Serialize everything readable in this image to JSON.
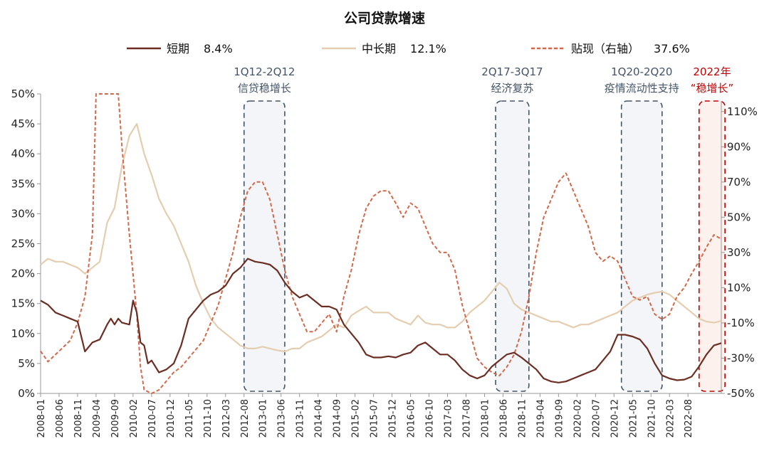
{
  "chart_data": {
    "type": "line",
    "title": "公司贷款增速",
    "legend_position": "top",
    "grid": false,
    "y_left": {
      "ylim": [
        0,
        50
      ],
      "ticks": [
        "0%",
        "5%",
        "10%",
        "15%",
        "20%",
        "25%",
        "30%",
        "35%",
        "40%",
        "45%",
        "50%"
      ]
    },
    "y_right": {
      "ylim": [
        -50,
        120
      ],
      "ticks": [
        "-50%",
        "-30%",
        "-10%",
        "10%",
        "30%",
        "50%",
        "70%",
        "90%",
        "110%"
      ]
    },
    "x_ticks": [
      "2008-01",
      "2008-06",
      "2008-11",
      "2009-04",
      "2009-09",
      "2010-02",
      "2010-07",
      "2010-12",
      "2011-05",
      "2011-10",
      "2012-03",
      "2012-08",
      "2013-01",
      "2013-06",
      "2013-11",
      "2014-04",
      "2014-09",
      "2015-02",
      "2015-07",
      "2015-12",
      "2016-05",
      "2016-10",
      "2017-03",
      "2017-08",
      "2018-01",
      "2018-06",
      "2018-11",
      "2019-04",
      "2019-09",
      "2020-02",
      "2020-07",
      "2020-12",
      "2021-05",
      "2021-10",
      "2022-03",
      "2022-08"
    ],
    "series": [
      {
        "name": "短期",
        "latest": "8.4%",
        "axis": "left",
        "color": "#6b2e22",
        "dash": "solid",
        "points": [
          [
            0,
            15.5
          ],
          [
            2,
            14.8
          ],
          [
            4,
            13.5
          ],
          [
            6,
            13.0
          ],
          [
            8,
            12.5
          ],
          [
            10,
            12.0
          ],
          [
            12,
            7.0
          ],
          [
            14,
            8.5
          ],
          [
            16,
            9.0
          ],
          [
            18,
            11.5
          ],
          [
            19,
            12.5
          ],
          [
            20,
            11.5
          ],
          [
            21,
            12.5
          ],
          [
            22,
            11.8
          ],
          [
            24,
            11.5
          ],
          [
            25,
            15.5
          ],
          [
            26,
            13.5
          ],
          [
            27,
            8.5
          ],
          [
            28,
            8.0
          ],
          [
            29,
            5.0
          ],
          [
            30,
            5.5
          ],
          [
            32,
            3.5
          ],
          [
            34,
            4.0
          ],
          [
            36,
            5.0
          ],
          [
            38,
            8.0
          ],
          [
            40,
            12.5
          ],
          [
            42,
            14.0
          ],
          [
            44,
            15.5
          ],
          [
            46,
            16.5
          ],
          [
            48,
            17.0
          ],
          [
            50,
            18.0
          ],
          [
            52,
            20.0
          ],
          [
            54,
            21.0
          ],
          [
            56,
            22.5
          ],
          [
            58,
            22.0
          ],
          [
            60,
            21.8
          ],
          [
            62,
            21.5
          ],
          [
            64,
            20.5
          ],
          [
            66,
            18.5
          ],
          [
            68,
            17.0
          ],
          [
            70,
            16.0
          ],
          [
            72,
            16.5
          ],
          [
            74,
            15.5
          ],
          [
            76,
            14.5
          ],
          [
            78,
            14.5
          ],
          [
            80,
            14.0
          ],
          [
            82,
            11.5
          ],
          [
            84,
            10.0
          ],
          [
            86,
            8.5
          ],
          [
            88,
            6.5
          ],
          [
            90,
            6.0
          ],
          [
            92,
            6.0
          ],
          [
            94,
            6.2
          ],
          [
            96,
            6.0
          ],
          [
            98,
            6.5
          ],
          [
            100,
            6.8
          ],
          [
            102,
            8.0
          ],
          [
            104,
            8.5
          ],
          [
            106,
            7.5
          ],
          [
            108,
            6.5
          ],
          [
            110,
            6.5
          ],
          [
            112,
            5.5
          ],
          [
            114,
            4.0
          ],
          [
            116,
            3.0
          ],
          [
            118,
            2.5
          ],
          [
            120,
            3.0
          ],
          [
            122,
            4.5
          ],
          [
            124,
            5.5
          ],
          [
            126,
            6.5
          ],
          [
            128,
            6.8
          ],
          [
            130,
            6.0
          ],
          [
            132,
            5.0
          ],
          [
            134,
            4.0
          ],
          [
            136,
            2.5
          ],
          [
            138,
            2.0
          ],
          [
            140,
            1.8
          ],
          [
            142,
            2.0
          ],
          [
            144,
            2.5
          ],
          [
            146,
            3.0
          ],
          [
            148,
            3.5
          ],
          [
            150,
            4.0
          ],
          [
            152,
            5.5
          ],
          [
            154,
            7.0
          ],
          [
            156,
            9.8
          ],
          [
            158,
            9.8
          ],
          [
            160,
            9.5
          ],
          [
            162,
            9.0
          ],
          [
            164,
            7.5
          ],
          [
            166,
            5.0
          ],
          [
            168,
            3.0
          ],
          [
            170,
            2.5
          ],
          [
            172,
            2.2
          ],
          [
            174,
            2.3
          ],
          [
            176,
            2.8
          ],
          [
            178,
            4.5
          ],
          [
            180,
            6.5
          ],
          [
            182,
            8.0
          ],
          [
            184,
            8.4
          ]
        ]
      },
      {
        "name": "中长期",
        "latest": "12.1%",
        "axis": "left",
        "color": "#e5cdaf",
        "dash": "solid",
        "points": [
          [
            0,
            21.5
          ],
          [
            2,
            22.5
          ],
          [
            4,
            22.0
          ],
          [
            6,
            22.0
          ],
          [
            8,
            21.5
          ],
          [
            10,
            21.0
          ],
          [
            12,
            20.0
          ],
          [
            14,
            21.0
          ],
          [
            16,
            22.0
          ],
          [
            18,
            28.5
          ],
          [
            20,
            31.0
          ],
          [
            22,
            38.0
          ],
          [
            24,
            43.0
          ],
          [
            26,
            45.0
          ],
          [
            28,
            40.0
          ],
          [
            30,
            36.5
          ],
          [
            32,
            32.5
          ],
          [
            34,
            30.0
          ],
          [
            36,
            28.0
          ],
          [
            38,
            25.0
          ],
          [
            40,
            22.0
          ],
          [
            42,
            18.0
          ],
          [
            44,
            15.0
          ],
          [
            46,
            12.5
          ],
          [
            48,
            11.0
          ],
          [
            50,
            10.0
          ],
          [
            52,
            9.0
          ],
          [
            54,
            8.0
          ],
          [
            56,
            7.5
          ],
          [
            58,
            7.5
          ],
          [
            60,
            7.8
          ],
          [
            62,
            7.5
          ],
          [
            64,
            7.2
          ],
          [
            66,
            7.0
          ],
          [
            68,
            7.5
          ],
          [
            70,
            7.5
          ],
          [
            72,
            8.5
          ],
          [
            74,
            9.0
          ],
          [
            76,
            9.5
          ],
          [
            78,
            10.5
          ],
          [
            80,
            11.5
          ],
          [
            82,
            11.0
          ],
          [
            84,
            13.0
          ],
          [
            86,
            13.8
          ],
          [
            88,
            14.5
          ],
          [
            90,
            13.5
          ],
          [
            92,
            13.5
          ],
          [
            94,
            13.5
          ],
          [
            96,
            12.5
          ],
          [
            98,
            12.0
          ],
          [
            100,
            11.5
          ],
          [
            102,
            13.0
          ],
          [
            104,
            11.8
          ],
          [
            106,
            11.5
          ],
          [
            108,
            11.5
          ],
          [
            110,
            11.0
          ],
          [
            112,
            11.0
          ],
          [
            114,
            12.0
          ],
          [
            116,
            13.5
          ],
          [
            118,
            14.5
          ],
          [
            120,
            15.5
          ],
          [
            122,
            17.0
          ],
          [
            124,
            18.5
          ],
          [
            126,
            17.5
          ],
          [
            128,
            15.0
          ],
          [
            130,
            14.0
          ],
          [
            132,
            13.5
          ],
          [
            134,
            13.0
          ],
          [
            136,
            12.5
          ],
          [
            138,
            12.0
          ],
          [
            140,
            12.0
          ],
          [
            142,
            11.5
          ],
          [
            144,
            11.0
          ],
          [
            146,
            11.5
          ],
          [
            148,
            11.5
          ],
          [
            150,
            12.0
          ],
          [
            152,
            12.5
          ],
          [
            154,
            13.0
          ],
          [
            156,
            13.5
          ],
          [
            158,
            14.5
          ],
          [
            160,
            15.5
          ],
          [
            162,
            16.0
          ],
          [
            164,
            16.5
          ],
          [
            166,
            16.8
          ],
          [
            168,
            17.0
          ],
          [
            170,
            16.5
          ],
          [
            172,
            15.5
          ],
          [
            174,
            14.5
          ],
          [
            176,
            13.5
          ],
          [
            178,
            12.5
          ],
          [
            180,
            12.0
          ],
          [
            182,
            11.8
          ],
          [
            184,
            12.1
          ]
        ]
      },
      {
        "name": "贴现（右轴）",
        "latest": "37.6%",
        "axis": "right",
        "color": "#d2694a",
        "dash": "dashed",
        "points": [
          [
            0,
            -26
          ],
          [
            2,
            -32
          ],
          [
            4,
            -28
          ],
          [
            6,
            -24
          ],
          [
            8,
            -20
          ],
          [
            10,
            -10
          ],
          [
            12,
            5
          ],
          [
            14,
            40
          ],
          [
            15,
            120
          ],
          [
            21,
            120
          ],
          [
            22,
            90
          ],
          [
            24,
            40
          ],
          [
            26,
            -5
          ],
          [
            27,
            -35
          ],
          [
            28,
            -48
          ],
          [
            30,
            -50
          ],
          [
            32,
            -48
          ],
          [
            34,
            -43
          ],
          [
            36,
            -38
          ],
          [
            38,
            -35
          ],
          [
            40,
            -30
          ],
          [
            42,
            -25
          ],
          [
            44,
            -20
          ],
          [
            46,
            -10
          ],
          [
            48,
            0
          ],
          [
            50,
            15
          ],
          [
            52,
            30
          ],
          [
            54,
            50
          ],
          [
            56,
            65
          ],
          [
            58,
            70
          ],
          [
            60,
            70
          ],
          [
            62,
            60
          ],
          [
            64,
            40
          ],
          [
            66,
            20
          ],
          [
            68,
            5
          ],
          [
            70,
            -5
          ],
          [
            72,
            -15
          ],
          [
            74,
            -15
          ],
          [
            76,
            -10
          ],
          [
            78,
            -5
          ],
          [
            80,
            -15
          ],
          [
            82,
            5
          ],
          [
            84,
            20
          ],
          [
            86,
            40
          ],
          [
            88,
            55
          ],
          [
            90,
            62
          ],
          [
            92,
            65
          ],
          [
            94,
            65
          ],
          [
            96,
            58
          ],
          [
            98,
            50
          ],
          [
            100,
            58
          ],
          [
            102,
            55
          ],
          [
            104,
            45
          ],
          [
            106,
            35
          ],
          [
            108,
            30
          ],
          [
            110,
            30
          ],
          [
            112,
            20
          ],
          [
            114,
            0
          ],
          [
            116,
            -15
          ],
          [
            118,
            -30
          ],
          [
            120,
            -35
          ],
          [
            122,
            -38
          ],
          [
            124,
            -40
          ],
          [
            126,
            -35
          ],
          [
            128,
            -28
          ],
          [
            130,
            -15
          ],
          [
            132,
            5
          ],
          [
            134,
            30
          ],
          [
            136,
            50
          ],
          [
            138,
            60
          ],
          [
            140,
            70
          ],
          [
            142,
            75
          ],
          [
            144,
            65
          ],
          [
            146,
            55
          ],
          [
            148,
            45
          ],
          [
            150,
            30
          ],
          [
            152,
            25
          ],
          [
            154,
            28
          ],
          [
            156,
            25
          ],
          [
            158,
            15
          ],
          [
            160,
            5
          ],
          [
            162,
            3
          ],
          [
            164,
            5
          ],
          [
            166,
            -5
          ],
          [
            168,
            -8
          ],
          [
            170,
            -5
          ],
          [
            172,
            5
          ],
          [
            174,
            10
          ],
          [
            176,
            18
          ],
          [
            178,
            25
          ],
          [
            180,
            33
          ],
          [
            182,
            40
          ],
          [
            184,
            37.6
          ]
        ]
      }
    ],
    "annotations": [
      {
        "label_lines": [
          "1Q12-2Q12",
          "信贷稳增长"
        ],
        "x_range": [
          55,
          66
        ],
        "color": "#44546a"
      },
      {
        "label_lines": [
          "2Q17-3Q17",
          "经济复苏"
        ],
        "x_range": [
          123,
          132
        ],
        "color": "#44546a"
      },
      {
        "label_lines": [
          "1Q20-2Q20",
          "疫情流动性支持"
        ],
        "x_range": [
          157,
          168
        ],
        "color": "#44546a"
      },
      {
        "label_lines": [
          "2022年",
          "“稳增长”"
        ],
        "x_range": [
          178,
          185
        ],
        "color": "#c00000"
      }
    ]
  }
}
